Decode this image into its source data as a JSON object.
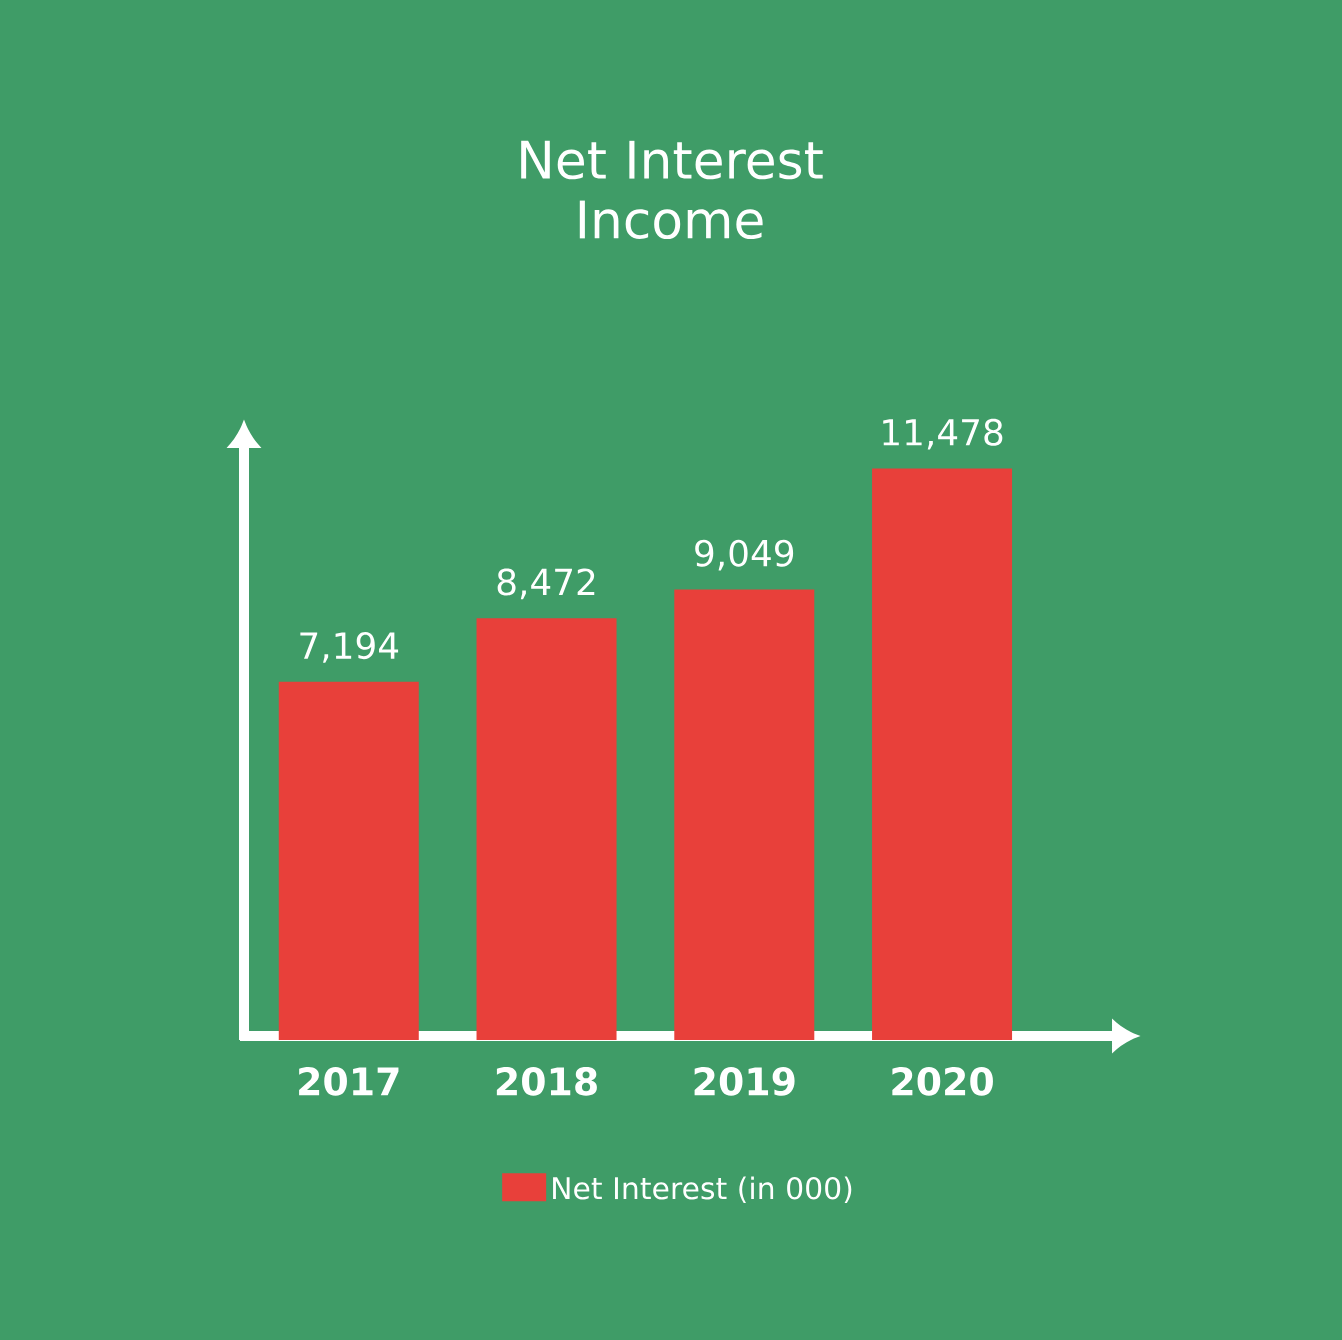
{
  "chart_data": {
    "type": "bar",
    "title": "Net Interest Income",
    "categories": [
      "2017",
      "2018",
      "2019",
      "2020"
    ],
    "series": [
      {
        "name": "Net Interest (in 000)",
        "color": "#e8403a",
        "values": [
          7194,
          8472,
          9049,
          11478
        ],
        "value_labels": [
          "7,194",
          "8,472",
          "9,049",
          "11,478"
        ]
      }
    ],
    "legend": "bottom"
  }
}
